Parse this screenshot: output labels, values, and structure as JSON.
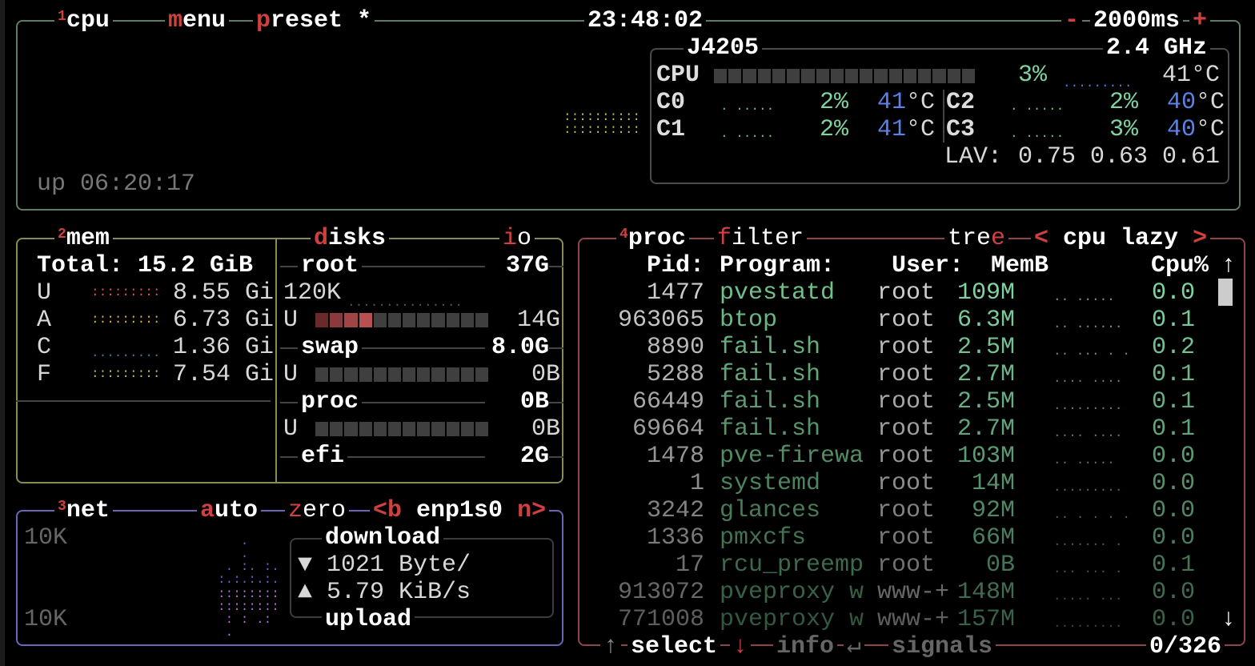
{
  "header": {
    "cpu_num": "1",
    "cpu_title": "cpu",
    "menu_key": "m",
    "menu_rest": "enu",
    "preset_key": "p",
    "preset_rest": "reset *",
    "clock": "23:48:02",
    "minus": "-",
    "interval": "2000ms",
    "plus": "+"
  },
  "cpu": {
    "model": "J4205",
    "freq": "2.4 GHz",
    "label": "CPU",
    "total_pct": "3%",
    "total_temp": "41°C",
    "uptime": "up 06:20:17",
    "bar_percent": 3,
    "cores": [
      {
        "name": "C0",
        "pct": "2%",
        "temp": "41",
        "unit": "°C"
      },
      {
        "name": "C1",
        "pct": "2%",
        "temp": "41",
        "unit": "°C"
      },
      {
        "name": "C2",
        "pct": "2%",
        "temp": "40",
        "unit": "°C"
      },
      {
        "name": "C3",
        "pct": "3%",
        "temp": "40",
        "unit": "°C"
      }
    ],
    "lav_label": "LAV:",
    "lav": [
      "0.75",
      "0.63",
      "0.61"
    ]
  },
  "mem": {
    "num": "2",
    "title": "mem",
    "total": "Total: 15.2 GiB",
    "rows": [
      {
        "k": "U",
        "v": "8.55 Gi",
        "color": "#e05050"
      },
      {
        "k": "A",
        "v": "6.73 Gi",
        "color": "#e0b040"
      },
      {
        "k": "C",
        "v": "1.36 Gi",
        "color": "#3a7aa8"
      },
      {
        "k": "F",
        "v": "7.54 Gi",
        "color": "#a0d050"
      }
    ]
  },
  "disks": {
    "key": "d",
    "rest": "isks",
    "io_key": "i",
    "io_rest": "o",
    "items": [
      {
        "name": "root",
        "size": "37G",
        "io": "120K",
        "used_label": "U",
        "used": "14G",
        "used_fraction": 0.33
      },
      {
        "name": "swap",
        "size": "8.0G",
        "used_label": "U",
        "used": "0B",
        "used_fraction": 0
      },
      {
        "name": "proc",
        "size": "0B",
        "used_label": "U",
        "used": "0B",
        "used_fraction": 0
      },
      {
        "name": "efi",
        "size": "2G"
      }
    ]
  },
  "net": {
    "num": "3",
    "title": "net",
    "auto_key": "a",
    "auto_rest": "uto",
    "zero_key": "z",
    "zero_rest": "ero",
    "prev_key": "<b",
    "iface": "enp1s0",
    "next_key": "n>",
    "scale_top": "10K",
    "scale_bottom": "10K",
    "download_label": "download",
    "upload_label": "upload",
    "down_icon": "▼",
    "down": "1021 Byte/",
    "up_icon": "▲",
    "up": "5.79 KiB/s"
  },
  "proc": {
    "num": "4",
    "title": "proc",
    "filter_key": "f",
    "filter_rest": "ilter",
    "tree_rest": "tre",
    "tree_key": "e",
    "sort_prev": "<",
    "sort": "cpu lazy",
    "sort_next": ">",
    "columns": {
      "pid": "Pid:",
      "program": "Program:",
      "user": "User:",
      "mem": "MemB",
      "cpu": "Cpu%"
    },
    "up_arrow": "↑",
    "down_arrow": "↓",
    "rows": [
      {
        "pid": "1477",
        "program": "pvestatd",
        "user": "root",
        "mem": "109M",
        "cpu": "0.0"
      },
      {
        "pid": "963065",
        "program": "btop",
        "user": "root",
        "mem": "6.3M",
        "cpu": "0.1"
      },
      {
        "pid": "8890",
        "program": "fail.sh",
        "user": "root",
        "mem": "2.5M",
        "cpu": "0.2"
      },
      {
        "pid": "5288",
        "program": "fail.sh",
        "user": "root",
        "mem": "2.7M",
        "cpu": "0.1"
      },
      {
        "pid": "66449",
        "program": "fail.sh",
        "user": "root",
        "mem": "2.5M",
        "cpu": "0.1"
      },
      {
        "pid": "69664",
        "program": "fail.sh",
        "user": "root",
        "mem": "2.7M",
        "cpu": "0.1"
      },
      {
        "pid": "1478",
        "program": "pve-firewa",
        "user": "root",
        "mem": "103M",
        "cpu": "0.0"
      },
      {
        "pid": "1",
        "program": "systemd",
        "user": "root",
        "mem": "14M",
        "cpu": "0.0"
      },
      {
        "pid": "3242",
        "program": "glances",
        "user": "root",
        "mem": "92M",
        "cpu": "0.0"
      },
      {
        "pid": "1336",
        "program": "pmxcfs",
        "user": "root",
        "mem": "66M",
        "cpu": "0.0"
      },
      {
        "pid": "17",
        "program": "rcu_preemp",
        "user": "root",
        "mem": "0B",
        "cpu": "0.1"
      },
      {
        "pid": "913072",
        "program": "pveproxy w",
        "user": "www-+",
        "mem": "148M",
        "cpu": "0.0"
      },
      {
        "pid": "771008",
        "program": "pveproxy w",
        "user": "www-+",
        "mem": "157M",
        "cpu": "0.0"
      }
    ],
    "footer": {
      "up": "↑",
      "select": "select",
      "down": "↓",
      "info": "info",
      "enter": "↵",
      "signals": "signals",
      "count": "0/326"
    }
  },
  "colors": {
    "cpu_box": "#5f7d62",
    "mem_box": "#8a8a55",
    "net_box": "#6a66b8",
    "proc_box": "#8a4848",
    "hotkey": "#d04040",
    "value_green": "#7fd3a0",
    "temp_blue": "#5a82e8"
  }
}
